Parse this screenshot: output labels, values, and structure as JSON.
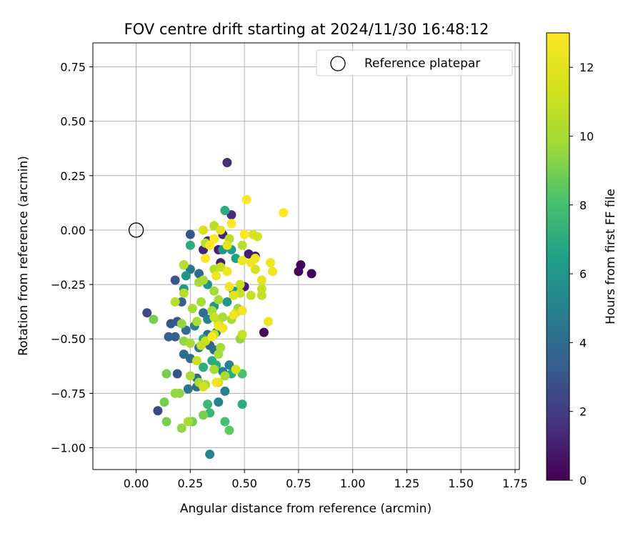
{
  "chart_data": {
    "type": "scatter",
    "title": "FOV centre drift starting at 2024/11/30 16:48:12",
    "xlabel": "Angular distance from reference (arcmin)",
    "ylabel": "Rotation from reference (arcmin)",
    "xlim": [
      -0.2,
      1.77
    ],
    "ylim": [
      -1.1,
      0.86
    ],
    "x_ticks": [
      0.0,
      0.25,
      0.5,
      0.75,
      1.0,
      1.25,
      1.5,
      1.75
    ],
    "x_tick_labels": [
      "0.00",
      "0.25",
      "0.50",
      "0.75",
      "1.00",
      "1.25",
      "1.50",
      "1.75"
    ],
    "y_ticks": [
      0.75,
      0.5,
      0.25,
      0.0,
      -0.25,
      -0.5,
      -0.75,
      -1.0
    ],
    "y_tick_labels": [
      "0.75",
      "0.50",
      "0.25",
      "0.00",
      "−0.25",
      "−0.50",
      "−0.75",
      "−1.00"
    ],
    "grid": true,
    "legend": {
      "position": "top-right",
      "entries": [
        "Reference platepar"
      ]
    },
    "reference_point": {
      "x": 0.0,
      "y": 0.0,
      "label": "Reference platepar"
    },
    "colorbar": {
      "label": "Hours from first FF file",
      "colormap": "viridis",
      "range": [
        0,
        13
      ],
      "ticks": [
        0,
        2,
        4,
        6,
        8,
        10,
        12
      ],
      "tick_labels": [
        "0",
        "2",
        "4",
        "6",
        "8",
        "10",
        "12"
      ]
    },
    "points": [
      [
        0.42,
        0.31,
        1.5
      ],
      [
        0.44,
        0.07,
        1.5
      ],
      [
        0.76,
        -0.16,
        0.2
      ],
      [
        0.75,
        -0.19,
        0.2
      ],
      [
        0.81,
        -0.2,
        0.2
      ],
      [
        0.59,
        -0.47,
        0.3
      ],
      [
        0.52,
        -0.11,
        1.0
      ],
      [
        0.55,
        -0.12,
        1.0
      ],
      [
        0.5,
        -0.26,
        1.0
      ],
      [
        0.39,
        -0.15,
        1.0
      ],
      [
        0.38,
        -0.09,
        1.0
      ],
      [
        0.31,
        -0.09,
        1.2
      ],
      [
        0.4,
        -0.02,
        1.2
      ],
      [
        0.33,
        -0.05,
        1.5
      ],
      [
        0.25,
        -0.02,
        3.0
      ],
      [
        0.18,
        -0.23,
        3.0
      ],
      [
        0.22,
        -0.16,
        3.0
      ],
      [
        0.05,
        -0.38,
        2.5
      ],
      [
        0.1,
        -0.83,
        2.5
      ],
      [
        0.19,
        -0.66,
        3.0
      ],
      [
        0.15,
        -0.49,
        3.5
      ],
      [
        0.18,
        -0.49,
        3.5
      ],
      [
        0.16,
        -0.43,
        3.0
      ],
      [
        0.19,
        -0.42,
        3.0
      ],
      [
        0.21,
        -0.33,
        3.5
      ],
      [
        0.23,
        -0.46,
        4.0
      ],
      [
        0.25,
        -0.18,
        4.5
      ],
      [
        0.29,
        -0.2,
        4.0
      ],
      [
        0.31,
        -0.38,
        4.0
      ],
      [
        0.33,
        -0.48,
        4.0
      ],
      [
        0.34,
        -0.53,
        3.5
      ],
      [
        0.36,
        -0.55,
        4.0
      ],
      [
        0.29,
        -0.54,
        4.5
      ],
      [
        0.25,
        -0.59,
        4.0
      ],
      [
        0.22,
        -0.57,
        4.0
      ],
      [
        0.28,
        -0.68,
        4.0
      ],
      [
        0.24,
        -0.73,
        4.5
      ],
      [
        0.28,
        -0.72,
        4.0
      ],
      [
        0.34,
        -1.03,
        5.0
      ],
      [
        0.38,
        -0.79,
        5.0
      ],
      [
        0.41,
        -0.74,
        5.0
      ],
      [
        0.43,
        -0.62,
        5.0
      ],
      [
        0.4,
        -0.65,
        5.0
      ],
      [
        0.33,
        -0.41,
        5.0
      ],
      [
        0.37,
        -0.47,
        5.0
      ],
      [
        0.27,
        -0.44,
        5.0
      ],
      [
        0.23,
        -0.21,
        6.0
      ],
      [
        0.22,
        -0.27,
        6.0
      ],
      [
        0.33,
        -0.25,
        6.0
      ],
      [
        0.36,
        -0.35,
        6.0
      ],
      [
        0.42,
        -0.33,
        6.0
      ],
      [
        0.45,
        -0.28,
        6.0
      ],
      [
        0.4,
        -0.09,
        6.0
      ],
      [
        0.44,
        -0.09,
        6.5
      ],
      [
        0.46,
        -0.13,
        6.5
      ],
      [
        0.41,
        0.09,
        7.0
      ],
      [
        0.25,
        -0.07,
        7.0
      ],
      [
        0.31,
        -0.5,
        7.0
      ],
      [
        0.35,
        -0.6,
        7.0
      ],
      [
        0.31,
        -0.63,
        7.0
      ],
      [
        0.37,
        -0.62,
        7.0
      ],
      [
        0.33,
        -0.8,
        7.5
      ],
      [
        0.34,
        -0.84,
        7.5
      ],
      [
        0.44,
        -0.66,
        7.0
      ],
      [
        0.49,
        -0.8,
        7.0
      ],
      [
        0.49,
        -0.66,
        8.0
      ],
      [
        0.41,
        -0.88,
        8.0
      ],
      [
        0.43,
        -0.92,
        8.5
      ],
      [
        0.31,
        -0.85,
        9.0
      ],
      [
        0.26,
        -0.88,
        9.0
      ],
      [
        0.21,
        -0.91,
        9.5
      ],
      [
        0.14,
        -0.88,
        9.0
      ],
      [
        0.13,
        -0.79,
        9.0
      ],
      [
        0.18,
        -0.75,
        9.5
      ],
      [
        0.2,
        -0.75,
        9.5
      ],
      [
        0.14,
        -0.66,
        9.0
      ],
      [
        0.08,
        -0.41,
        9.0
      ],
      [
        0.21,
        -0.43,
        9.5
      ],
      [
        0.22,
        -0.51,
        9.5
      ],
      [
        0.25,
        -0.52,
        10.0
      ],
      [
        0.28,
        -0.42,
        10.0
      ],
      [
        0.26,
        -0.36,
        10.0
      ],
      [
        0.29,
        -0.24,
        10.0
      ],
      [
        0.31,
        -0.23,
        10.0
      ],
      [
        0.3,
        -0.33,
        10.0
      ],
      [
        0.35,
        -0.37,
        10.0
      ],
      [
        0.36,
        -0.28,
        10.0
      ],
      [
        0.38,
        -0.32,
        10.0
      ],
      [
        0.4,
        -0.4,
        10.0
      ],
      [
        0.44,
        -0.41,
        10.0
      ],
      [
        0.47,
        -0.36,
        9.5
      ],
      [
        0.48,
        -0.5,
        9.5
      ],
      [
        0.39,
        -0.54,
        10.0
      ],
      [
        0.38,
        -0.57,
        10.0
      ],
      [
        0.36,
        -0.64,
        10.0
      ],
      [
        0.41,
        -0.67,
        10.0
      ],
      [
        0.32,
        -0.71,
        10.0
      ],
      [
        0.29,
        -0.7,
        10.0
      ],
      [
        0.25,
        -0.67,
        10.0
      ],
      [
        0.24,
        -0.88,
        10.0
      ],
      [
        0.36,
        0.02,
        10.5
      ],
      [
        0.32,
        -0.06,
        10.5
      ],
      [
        0.43,
        -0.04,
        10.5
      ],
      [
        0.49,
        -0.07,
        10.5
      ],
      [
        0.22,
        -0.16,
        10.5
      ],
      [
        0.22,
        -0.29,
        10.5
      ],
      [
        0.18,
        -0.33,
        10.5
      ],
      [
        0.36,
        -0.18,
        10.5
      ],
      [
        0.39,
        -0.17,
        11.0
      ],
      [
        0.48,
        -0.25,
        11.0
      ],
      [
        0.48,
        -0.29,
        11.0
      ],
      [
        0.53,
        -0.3,
        11.0
      ],
      [
        0.58,
        -0.27,
        11.0
      ],
      [
        0.58,
        -0.3,
        11.0
      ],
      [
        0.49,
        -0.48,
        11.0
      ],
      [
        0.46,
        -0.38,
        11.0
      ],
      [
        0.36,
        -0.4,
        11.0
      ],
      [
        0.38,
        -0.43,
        11.0
      ],
      [
        0.36,
        -0.48,
        11.0
      ],
      [
        0.32,
        -0.51,
        11.0
      ],
      [
        0.3,
        -0.53,
        11.0
      ],
      [
        0.28,
        -0.6,
        11.0
      ],
      [
        0.31,
        -0.72,
        11.5
      ],
      [
        0.38,
        -0.7,
        11.5
      ],
      [
        0.46,
        -0.64,
        11.5
      ],
      [
        0.31,
        0.0,
        11.5
      ],
      [
        0.39,
        0.0,
        12.0
      ],
      [
        0.42,
        -0.07,
        12.0
      ],
      [
        0.54,
        -0.02,
        11.5
      ],
      [
        0.56,
        -0.03,
        11.5
      ],
      [
        0.55,
        -0.18,
        11.5
      ],
      [
        0.58,
        -0.23,
        12.0
      ],
      [
        0.63,
        -0.19,
        12.5
      ],
      [
        0.62,
        -0.15,
        12.5
      ],
      [
        0.51,
        0.14,
        13.0
      ],
      [
        0.68,
        0.08,
        13.0
      ],
      [
        0.44,
        0.03,
        13.0
      ],
      [
        0.5,
        -0.02,
        13.0
      ],
      [
        0.36,
        -0.04,
        13.0
      ],
      [
        0.34,
        -0.07,
        13.0
      ],
      [
        0.32,
        -0.13,
        13.0
      ],
      [
        0.37,
        -0.21,
        12.5
      ],
      [
        0.42,
        -0.19,
        12.5
      ],
      [
        0.43,
        -0.26,
        12.5
      ],
      [
        0.49,
        -0.14,
        12.5
      ],
      [
        0.53,
        -0.15,
        12.5
      ],
      [
        0.55,
        -0.13,
        12.5
      ],
      [
        0.45,
        -0.3,
        12.0
      ],
      [
        0.49,
        -0.37,
        12.5
      ],
      [
        0.45,
        -0.39,
        12.5
      ],
      [
        0.61,
        -0.42,
        12.5
      ],
      [
        0.4,
        -0.45,
        12.5
      ],
      [
        0.38,
        -0.44,
        12.5
      ],
      [
        0.35,
        -0.49,
        13.0
      ],
      [
        0.37,
        -0.7,
        12.5
      ]
    ]
  }
}
